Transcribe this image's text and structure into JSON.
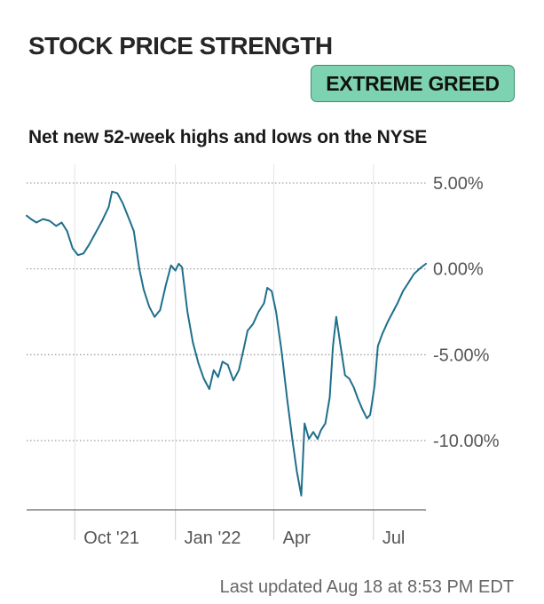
{
  "header": {
    "title": "STOCK PRICE STRENGTH",
    "status_badge": "EXTREME GREED",
    "status_color": "#7dd3b1"
  },
  "footer": {
    "last_updated": "Last updated Aug 18 at 8:53 PM EDT"
  },
  "chart_data": {
    "type": "line",
    "title": "Net new 52-week highs and lows on the NYSE",
    "xlabel": "",
    "ylabel": "",
    "ylim": [
      -14,
      5
    ],
    "y_ticks": [
      {
        "value": 5,
        "label": "5.00%"
      },
      {
        "value": 0,
        "label": "0.00%"
      },
      {
        "value": -5,
        "label": "-5.00%"
      },
      {
        "value": -10,
        "label": "-10.00%"
      }
    ],
    "x_ticks": [
      {
        "date": "2021-10-01",
        "label": "Oct '21"
      },
      {
        "date": "2022-01-01",
        "label": "Jan '22"
      },
      {
        "date": "2022-04-01",
        "label": "Apr"
      },
      {
        "date": "2022-07-01",
        "label": "Jul"
      }
    ],
    "x_range": [
      "2021-08-18",
      "2022-08-18"
    ],
    "grid": true,
    "line_color": "#1f6f8b",
    "series": [
      {
        "name": "",
        "points": [
          [
            "2021-08-18",
            3.1
          ],
          [
            "2021-08-22",
            2.9
          ],
          [
            "2021-08-27",
            2.7
          ],
          [
            "2021-09-02",
            2.9
          ],
          [
            "2021-09-08",
            2.8
          ],
          [
            "2021-09-14",
            2.5
          ],
          [
            "2021-09-19",
            2.7
          ],
          [
            "2021-09-24",
            2.2
          ],
          [
            "2021-09-29",
            1.2
          ],
          [
            "2021-10-04",
            0.8
          ],
          [
            "2021-10-09",
            0.9
          ],
          [
            "2021-10-14",
            1.4
          ],
          [
            "2021-10-20",
            2.1
          ],
          [
            "2021-10-26",
            2.8
          ],
          [
            "2021-11-01",
            3.6
          ],
          [
            "2021-11-04",
            4.5
          ],
          [
            "2021-11-09",
            4.4
          ],
          [
            "2021-11-14",
            3.8
          ],
          [
            "2021-11-19",
            3.0
          ],
          [
            "2021-11-24",
            2.2
          ],
          [
            "2021-11-29",
            0.0
          ],
          [
            "2021-12-03",
            -1.2
          ],
          [
            "2021-12-08",
            -2.2
          ],
          [
            "2021-12-13",
            -2.8
          ],
          [
            "2021-12-18",
            -2.4
          ],
          [
            "2021-12-23",
            -1.0
          ],
          [
            "2021-12-28",
            0.2
          ],
          [
            "2022-01-01",
            -0.1
          ],
          [
            "2022-01-04",
            0.3
          ],
          [
            "2022-01-07",
            0.1
          ],
          [
            "2022-01-12",
            -2.5
          ],
          [
            "2022-01-17",
            -4.3
          ],
          [
            "2022-01-22",
            -5.5
          ],
          [
            "2022-01-27",
            -6.4
          ],
          [
            "2022-02-01",
            -7.0
          ],
          [
            "2022-02-05",
            -5.9
          ],
          [
            "2022-02-09",
            -6.3
          ],
          [
            "2022-02-13",
            -5.4
          ],
          [
            "2022-02-18",
            -5.6
          ],
          [
            "2022-02-23",
            -6.5
          ],
          [
            "2022-02-28",
            -5.9
          ],
          [
            "2022-03-05",
            -4.5
          ],
          [
            "2022-03-08",
            -3.6
          ],
          [
            "2022-03-13",
            -3.2
          ],
          [
            "2022-03-18",
            -2.5
          ],
          [
            "2022-03-23",
            -2.0
          ],
          [
            "2022-03-26",
            -1.1
          ],
          [
            "2022-03-30",
            -1.3
          ],
          [
            "2022-04-03",
            -2.5
          ],
          [
            "2022-04-08",
            -4.8
          ],
          [
            "2022-04-13",
            -7.5
          ],
          [
            "2022-04-18",
            -10.0
          ],
          [
            "2022-04-22",
            -11.8
          ],
          [
            "2022-04-26",
            -13.2
          ],
          [
            "2022-04-29",
            -9.0
          ],
          [
            "2022-05-03",
            -9.9
          ],
          [
            "2022-05-07",
            -9.5
          ],
          [
            "2022-05-11",
            -9.9
          ],
          [
            "2022-05-14",
            -9.4
          ],
          [
            "2022-05-18",
            -9.0
          ],
          [
            "2022-05-22",
            -7.5
          ],
          [
            "2022-05-25",
            -4.5
          ],
          [
            "2022-05-28",
            -2.8
          ],
          [
            "2022-06-01",
            -4.5
          ],
          [
            "2022-06-05",
            -6.2
          ],
          [
            "2022-06-09",
            -6.4
          ],
          [
            "2022-06-13",
            -6.9
          ],
          [
            "2022-06-17",
            -7.6
          ],
          [
            "2022-06-21",
            -8.2
          ],
          [
            "2022-06-25",
            -8.7
          ],
          [
            "2022-06-28",
            -8.5
          ],
          [
            "2022-07-02",
            -6.8
          ],
          [
            "2022-07-05",
            -4.5
          ],
          [
            "2022-07-09",
            -3.8
          ],
          [
            "2022-07-14",
            -3.1
          ],
          [
            "2022-07-18",
            -2.6
          ],
          [
            "2022-07-23",
            -2.0
          ],
          [
            "2022-07-28",
            -1.3
          ],
          [
            "2022-08-02",
            -0.8
          ],
          [
            "2022-08-07",
            -0.3
          ],
          [
            "2022-08-12",
            0.0
          ],
          [
            "2022-08-18",
            0.3
          ]
        ]
      }
    ]
  }
}
